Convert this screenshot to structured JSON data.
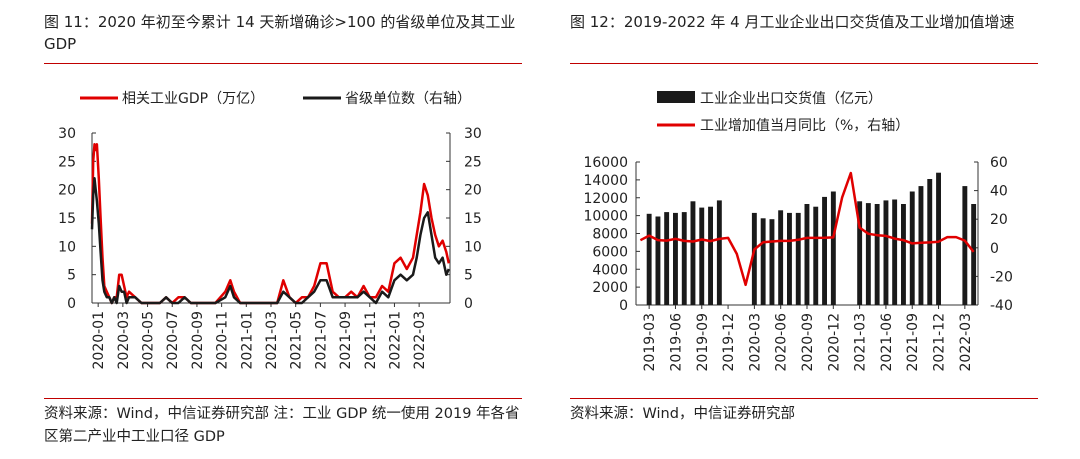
{
  "left": {
    "title": "图 11：2020 年初至今累计 14 天新增确诊>100 的省级单位及其工业 GDP",
    "source": "资料来源：Wind，中信证券研究部 注：工业 GDP 统一使用 2019 年各省区第二产业中工业口径 GDP"
  },
  "right": {
    "title": "图 12：2019-2022 年 4 月工业企业出口交货值及工业增加值增速",
    "source": "资料来源：Wind，中信证券研究部"
  },
  "colors": {
    "red": "#e00000",
    "black": "#1a1a1a",
    "rule": "#c00000"
  },
  "chart_data": [
    {
      "type": "line",
      "legend_placement": "top",
      "x_tick_labels": [
        "2020-01",
        "2020-03",
        "2020-05",
        "2020-07",
        "2020-09",
        "2020-11",
        "2021-01",
        "2021-03",
        "2021-05",
        "2021-07",
        "2021-09",
        "2021-11",
        "2022-01",
        "2022-03"
      ],
      "x_range": [
        0,
        29
      ],
      "ylim": [
        0,
        30
      ],
      "y2lim": [
        0,
        30
      ],
      "yticks": [
        0,
        5,
        10,
        15,
        20,
        25,
        30
      ],
      "y2ticks": [
        0,
        5,
        10,
        15,
        20,
        25,
        30
      ],
      "series": [
        {
          "name": "相关工业GDP（万亿）",
          "color": "#e00000",
          "axis": "left",
          "x": [
            0.0,
            0.1,
            0.2,
            0.3,
            0.4,
            0.55,
            0.7,
            0.85,
            1.0,
            1.2,
            1.4,
            1.6,
            1.8,
            2.0,
            2.2,
            2.4,
            2.6,
            2.8,
            3.0,
            3.5,
            4.0,
            4.5,
            5.0,
            5.5,
            6.0,
            6.5,
            7.0,
            7.5,
            8.0,
            9.0,
            10.0,
            10.8,
            11.2,
            11.5,
            12.0,
            12.5,
            13.0,
            14.0,
            15.0,
            15.5,
            16.0,
            16.5,
            17.0,
            17.5,
            18.0,
            18.5,
            19.0,
            19.5,
            20.0,
            20.5,
            21.0,
            21.5,
            22.0,
            22.5,
            23.0,
            23.5,
            24.0,
            24.5,
            25.0,
            25.5,
            26.0,
            26.3,
            26.6,
            26.9,
            27.2,
            27.5,
            27.8,
            28.1,
            28.4,
            28.7,
            28.9
          ],
          "values": [
            14,
            25,
            28,
            27,
            28,
            22,
            15,
            8,
            3,
            2,
            1,
            0,
            1,
            1,
            5,
            5,
            3,
            1,
            2,
            1,
            0,
            0,
            0,
            0,
            1,
            0,
            1,
            1,
            0,
            0,
            0,
            2,
            4,
            2,
            0,
            0,
            0,
            0,
            0,
            4,
            1,
            0,
            1,
            1,
            3,
            7,
            7,
            2,
            1,
            1,
            2,
            1,
            3,
            1,
            1,
            3,
            2,
            7,
            8,
            6,
            8,
            12,
            16,
            21,
            19,
            15,
            12,
            10,
            11,
            9,
            7
          ]
        },
        {
          "name": "省级单位数（右轴）",
          "color": "#1a1a1a",
          "axis": "right",
          "x": [
            0.0,
            0.1,
            0.2,
            0.3,
            0.4,
            0.55,
            0.7,
            0.85,
            1.0,
            1.2,
            1.4,
            1.6,
            1.8,
            2.0,
            2.2,
            2.4,
            2.6,
            2.8,
            3.0,
            3.5,
            4.0,
            4.5,
            5.0,
            5.5,
            6.0,
            6.5,
            7.0,
            7.5,
            8.0,
            9.0,
            10.0,
            10.8,
            11.2,
            11.5,
            12.0,
            12.5,
            13.0,
            14.0,
            15.0,
            15.5,
            16.0,
            16.5,
            17.0,
            17.5,
            18.0,
            18.5,
            19.0,
            19.5,
            20.0,
            20.5,
            21.0,
            21.5,
            22.0,
            22.5,
            23.0,
            23.5,
            24.0,
            24.5,
            25.0,
            25.5,
            26.0,
            26.3,
            26.6,
            26.9,
            27.2,
            27.5,
            27.8,
            28.1,
            28.4,
            28.7,
            28.9
          ],
          "values": [
            13,
            19,
            22,
            20,
            18,
            14,
            9,
            4,
            2,
            1,
            1,
            0,
            1,
            0,
            3,
            2,
            2,
            0,
            1,
            1,
            0,
            0,
            0,
            0,
            1,
            0,
            0,
            1,
            0,
            0,
            0,
            1,
            3,
            1,
            0,
            0,
            0,
            0,
            0,
            2,
            1,
            0,
            0,
            1,
            2,
            4,
            4,
            1,
            1,
            1,
            1,
            1,
            2,
            1,
            0,
            2,
            1,
            4,
            5,
            4,
            5,
            8,
            12,
            15,
            16,
            12,
            8,
            7,
            8,
            5,
            6
          ]
        }
      ]
    },
    {
      "type": "bar",
      "legend_placement": "top",
      "x_tick_labels": [
        "2019-03",
        "2019-06",
        "2019-09",
        "2019-12",
        "2020-03",
        "2020-06",
        "2020-09",
        "2020-12",
        "2021-03",
        "2021-06",
        "2021-09",
        "2021-12",
        "2022-03"
      ],
      "categories": [
        "2019-02",
        "2019-03",
        "2019-04",
        "2019-05",
        "2019-06",
        "2019-07",
        "2019-08",
        "2019-09",
        "2019-10",
        "2019-11",
        "2019-12",
        "2020-01",
        "2020-02",
        "2020-03",
        "2020-04",
        "2020-05",
        "2020-06",
        "2020-07",
        "2020-08",
        "2020-09",
        "2020-10",
        "2020-11",
        "2020-12",
        "2021-01",
        "2021-02",
        "2021-03",
        "2021-04",
        "2021-05",
        "2021-06",
        "2021-07",
        "2021-08",
        "2021-09",
        "2021-10",
        "2021-11",
        "2021-12",
        "2022-01",
        "2022-02",
        "2022-03",
        "2022-04"
      ],
      "ylim": [
        0,
        16000
      ],
      "yticks": [
        0,
        2000,
        4000,
        6000,
        8000,
        10000,
        12000,
        14000,
        16000
      ],
      "y2lim": [
        -40,
        60
      ],
      "y2ticks": [
        -40,
        -20,
        0,
        20,
        40,
        60
      ],
      "series": [
        {
          "name": "工业企业出口交货值（亿元）",
          "type": "bar",
          "color": "#1a1a1a",
          "axis": "left",
          "values": [
            null,
            10200,
            9900,
            10400,
            10300,
            10400,
            11600,
            10900,
            11000,
            11700,
            null,
            null,
            null,
            10300,
            9700,
            9600,
            10600,
            10300,
            10300,
            11300,
            11000,
            12100,
            12700,
            null,
            null,
            11600,
            11400,
            11300,
            11700,
            11800,
            11300,
            12700,
            13300,
            14100,
            14800,
            null,
            null,
            13300,
            11300
          ]
        },
        {
          "name": "工业增加值当月同比（%，右轴）",
          "type": "line",
          "color": "#e00000",
          "axis": "right",
          "values": [
            5.3,
            8.5,
            5.4,
            5.0,
            6.3,
            4.8,
            4.4,
            5.8,
            4.7,
            6.2,
            6.9,
            -4.3,
            -25.9,
            -1.1,
            3.9,
            4.4,
            4.8,
            4.8,
            5.6,
            6.9,
            6.9,
            7.0,
            7.3,
            35.1,
            52.3,
            14.1,
            9.8,
            8.8,
            8.3,
            6.4,
            5.3,
            3.1,
            3.5,
            3.8,
            4.3,
            7.5,
            7.5,
            5.0,
            -2.9
          ]
        }
      ]
    }
  ]
}
